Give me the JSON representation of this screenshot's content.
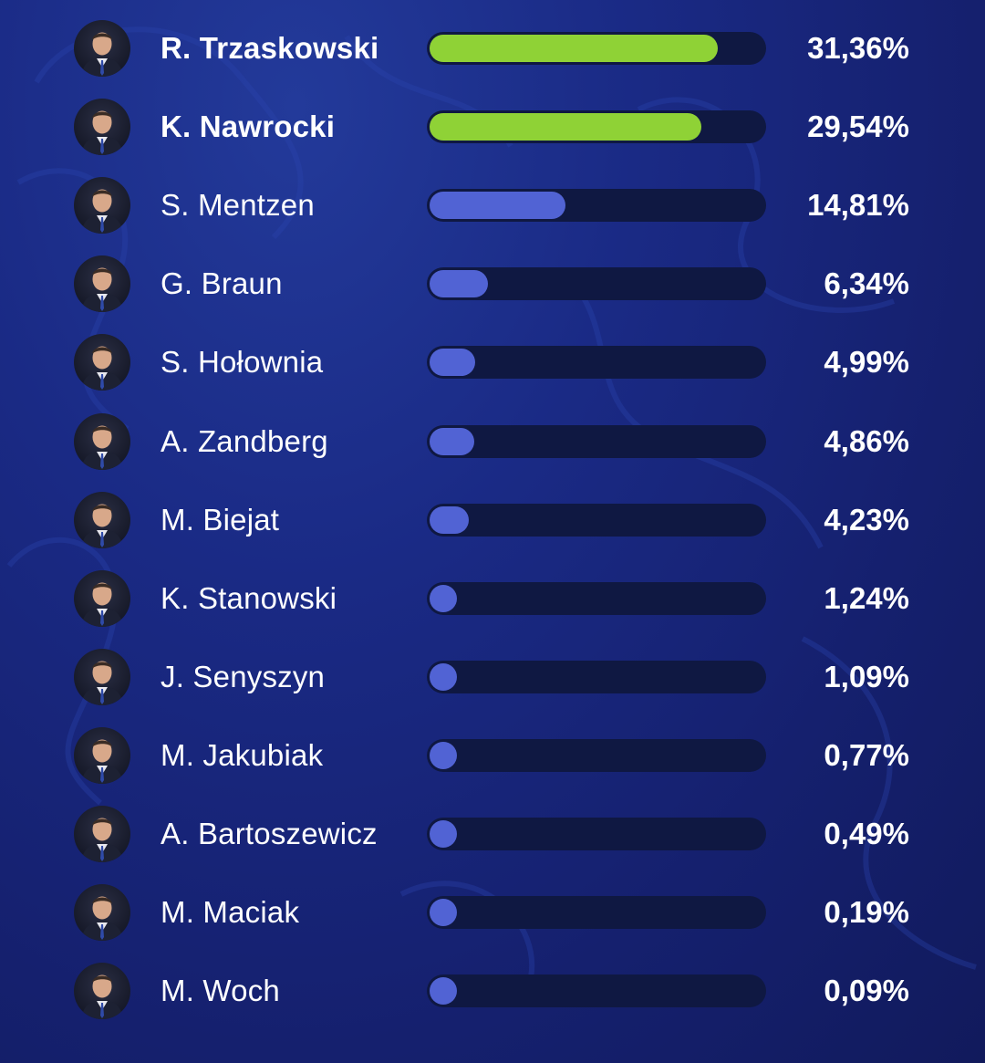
{
  "chart_data": {
    "type": "bar",
    "orientation": "horizontal",
    "title": "",
    "xlabel": "",
    "ylabel": "",
    "grid": false,
    "colors": {
      "leader": "#8fd236",
      "other": "#5163d4",
      "track": "#0f1842",
      "text": "#ffffff"
    },
    "bars": [
      {
        "name": "R. Trzaskowski",
        "value": 31.36,
        "label": "31,36%",
        "highlight": true
      },
      {
        "name": "K. Nawrocki",
        "value": 29.54,
        "label": "29,54%",
        "highlight": true
      },
      {
        "name": "S. Mentzen",
        "value": 14.81,
        "label": "14,81%",
        "highlight": false
      },
      {
        "name": "G. Braun",
        "value": 6.34,
        "label": "6,34%",
        "highlight": false
      },
      {
        "name": "S. Hołownia",
        "value": 4.99,
        "label": "4,99%",
        "highlight": false
      },
      {
        "name": "A. Zandberg",
        "value": 4.86,
        "label": "4,86%",
        "highlight": false
      },
      {
        "name": "M. Biejat",
        "value": 4.23,
        "label": "4,23%",
        "highlight": false
      },
      {
        "name": "K. Stanowski",
        "value": 1.24,
        "label": "1,24%",
        "highlight": false
      },
      {
        "name": "J. Senyszyn",
        "value": 1.09,
        "label": "1,09%",
        "highlight": false
      },
      {
        "name": "M. Jakubiak",
        "value": 0.77,
        "label": "0,77%",
        "highlight": false
      },
      {
        "name": "A. Bartoszewicz",
        "value": 0.49,
        "label": "0,49%",
        "highlight": false
      },
      {
        "name": "M. Maciak",
        "value": 0.19,
        "label": "0,19%",
        "highlight": false
      },
      {
        "name": "M. Woch",
        "value": 0.09,
        "label": "0,09%",
        "highlight": false
      }
    ]
  },
  "icons": {
    "avatar": "person-portrait-icon"
  }
}
